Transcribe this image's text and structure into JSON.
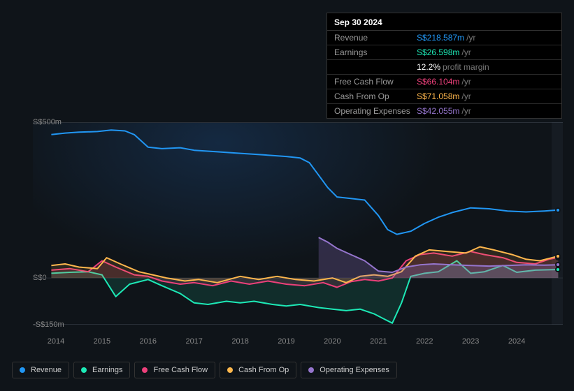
{
  "tooltip": {
    "date": "Sep 30 2024",
    "rows": [
      {
        "label": "Revenue",
        "value": "S$218.587m",
        "unit": "/yr",
        "color": "#2196f3"
      },
      {
        "label": "Earnings",
        "value": "S$26.598m",
        "unit": "/yr",
        "color": "#1de9b6"
      },
      {
        "label": "",
        "value": "12.2%",
        "unit": "profit margin",
        "color": "#ffffff"
      },
      {
        "label": "Free Cash Flow",
        "value": "S$66.104m",
        "unit": "/yr",
        "color": "#ec407a"
      },
      {
        "label": "Cash From Op",
        "value": "S$71.058m",
        "unit": "/yr",
        "color": "#ffb74d"
      },
      {
        "label": "Operating Expenses",
        "value": "S$42.055m",
        "unit": "/yr",
        "color": "#9575cd"
      }
    ]
  },
  "chart": {
    "type": "line",
    "background_color": "#0f1419",
    "grid_color": "#2a3038",
    "text_color": "#888888",
    "label_fontsize": 11,
    "y_axis": {
      "ticks": [
        {
          "label": "S$500m",
          "value": 500
        },
        {
          "label": "S$0",
          "value": 0
        },
        {
          "label": "-S$150m",
          "value": -150
        }
      ],
      "min": -150,
      "max": 500
    },
    "x_axis": {
      "min": 2013.5,
      "max": 2025.0,
      "labels": [
        "2014",
        "2015",
        "2016",
        "2017",
        "2018",
        "2019",
        "2020",
        "2021",
        "2022",
        "2023",
        "2024"
      ]
    },
    "future_start": 2024.75,
    "series": [
      {
        "name": "Revenue",
        "color": "#2196f3",
        "line_width": 2,
        "fill_opacity": 0,
        "data": [
          [
            2013.9,
            460
          ],
          [
            2014.2,
            465
          ],
          [
            2014.5,
            468
          ],
          [
            2014.9,
            470
          ],
          [
            2015.2,
            475
          ],
          [
            2015.5,
            472
          ],
          [
            2015.7,
            460
          ],
          [
            2016.0,
            420
          ],
          [
            2016.3,
            415
          ],
          [
            2016.7,
            418
          ],
          [
            2017.0,
            410
          ],
          [
            2017.5,
            405
          ],
          [
            2018.0,
            400
          ],
          [
            2018.5,
            395
          ],
          [
            2019.0,
            390
          ],
          [
            2019.3,
            385
          ],
          [
            2019.5,
            370
          ],
          [
            2019.7,
            330
          ],
          [
            2019.9,
            290
          ],
          [
            2020.1,
            260
          ],
          [
            2020.4,
            255
          ],
          [
            2020.7,
            250
          ],
          [
            2021.0,
            200
          ],
          [
            2021.2,
            155
          ],
          [
            2021.4,
            140
          ],
          [
            2021.7,
            150
          ],
          [
            2022.0,
            175
          ],
          [
            2022.3,
            195
          ],
          [
            2022.6,
            210
          ],
          [
            2023.0,
            225
          ],
          [
            2023.4,
            222
          ],
          [
            2023.8,
            215
          ],
          [
            2024.2,
            212
          ],
          [
            2024.6,
            215
          ],
          [
            2024.9,
            218
          ]
        ]
      },
      {
        "name": "Earnings",
        "color": "#1de9b6",
        "line_width": 2,
        "fill_opacity": 0.12,
        "data": [
          [
            2013.9,
            15
          ],
          [
            2014.3,
            18
          ],
          [
            2014.7,
            20
          ],
          [
            2015.0,
            10
          ],
          [
            2015.3,
            -60
          ],
          [
            2015.6,
            -20
          ],
          [
            2016.0,
            -5
          ],
          [
            2016.3,
            -25
          ],
          [
            2016.7,
            -50
          ],
          [
            2017.0,
            -80
          ],
          [
            2017.3,
            -85
          ],
          [
            2017.7,
            -75
          ],
          [
            2018.0,
            -80
          ],
          [
            2018.3,
            -75
          ],
          [
            2018.7,
            -85
          ],
          [
            2019.0,
            -90
          ],
          [
            2019.3,
            -85
          ],
          [
            2019.7,
            -95
          ],
          [
            2020.0,
            -100
          ],
          [
            2020.3,
            -105
          ],
          [
            2020.6,
            -100
          ],
          [
            2020.9,
            -115
          ],
          [
            2021.1,
            -130
          ],
          [
            2021.3,
            -145
          ],
          [
            2021.5,
            -80
          ],
          [
            2021.7,
            5
          ],
          [
            2022.0,
            15
          ],
          [
            2022.3,
            20
          ],
          [
            2022.7,
            55
          ],
          [
            2023.0,
            15
          ],
          [
            2023.3,
            20
          ],
          [
            2023.7,
            40
          ],
          [
            2024.0,
            18
          ],
          [
            2024.4,
            25
          ],
          [
            2024.9,
            27
          ]
        ]
      },
      {
        "name": "Free Cash Flow",
        "color": "#ec407a",
        "line_width": 2,
        "fill_opacity": 0.15,
        "data": [
          [
            2013.9,
            25
          ],
          [
            2014.3,
            30
          ],
          [
            2014.7,
            20
          ],
          [
            2015.0,
            55
          ],
          [
            2015.3,
            35
          ],
          [
            2015.7,
            10
          ],
          [
            2016.0,
            5
          ],
          [
            2016.3,
            -10
          ],
          [
            2016.7,
            -20
          ],
          [
            2017.0,
            -15
          ],
          [
            2017.4,
            -25
          ],
          [
            2017.8,
            -10
          ],
          [
            2018.2,
            -20
          ],
          [
            2018.6,
            -10
          ],
          [
            2019.0,
            -20
          ],
          [
            2019.4,
            -25
          ],
          [
            2019.8,
            -15
          ],
          [
            2020.1,
            -30
          ],
          [
            2020.4,
            -12
          ],
          [
            2020.7,
            -5
          ],
          [
            2021.0,
            -10
          ],
          [
            2021.3,
            0
          ],
          [
            2021.6,
            55
          ],
          [
            2021.9,
            75
          ],
          [
            2022.2,
            80
          ],
          [
            2022.6,
            70
          ],
          [
            2023.0,
            85
          ],
          [
            2023.3,
            75
          ],
          [
            2023.7,
            65
          ],
          [
            2024.0,
            50
          ],
          [
            2024.4,
            45
          ],
          [
            2024.7,
            60
          ],
          [
            2024.9,
            66
          ]
        ]
      },
      {
        "name": "Cash From Op",
        "color": "#ffb74d",
        "line_width": 2,
        "fill_opacity": 0.12,
        "data": [
          [
            2013.9,
            40
          ],
          [
            2014.2,
            45
          ],
          [
            2014.5,
            35
          ],
          [
            2014.9,
            30
          ],
          [
            2015.1,
            65
          ],
          [
            2015.4,
            45
          ],
          [
            2015.8,
            20
          ],
          [
            2016.1,
            10
          ],
          [
            2016.4,
            0
          ],
          [
            2016.8,
            -10
          ],
          [
            2017.1,
            -5
          ],
          [
            2017.5,
            -15
          ],
          [
            2018.0,
            5
          ],
          [
            2018.4,
            -5
          ],
          [
            2018.8,
            5
          ],
          [
            2019.2,
            -5
          ],
          [
            2019.6,
            -10
          ],
          [
            2020.0,
            0
          ],
          [
            2020.3,
            -15
          ],
          [
            2020.6,
            5
          ],
          [
            2020.9,
            10
          ],
          [
            2021.2,
            5
          ],
          [
            2021.5,
            20
          ],
          [
            2021.8,
            70
          ],
          [
            2022.1,
            90
          ],
          [
            2022.5,
            85
          ],
          [
            2022.9,
            80
          ],
          [
            2023.2,
            100
          ],
          [
            2023.5,
            90
          ],
          [
            2023.9,
            75
          ],
          [
            2024.2,
            60
          ],
          [
            2024.5,
            55
          ],
          [
            2024.9,
            70
          ]
        ]
      },
      {
        "name": "Operating Expenses",
        "color": "#9575cd",
        "line_width": 2,
        "fill_opacity": 0.25,
        "data": [
          [
            2019.7,
            130
          ],
          [
            2019.9,
            115
          ],
          [
            2020.1,
            95
          ],
          [
            2020.4,
            75
          ],
          [
            2020.7,
            55
          ],
          [
            2021.0,
            22
          ],
          [
            2021.3,
            18
          ],
          [
            2021.6,
            35
          ],
          [
            2021.9,
            42
          ],
          [
            2022.2,
            45
          ],
          [
            2022.6,
            42
          ],
          [
            2023.0,
            40
          ],
          [
            2023.4,
            38
          ],
          [
            2023.8,
            40
          ],
          [
            2024.2,
            42
          ],
          [
            2024.6,
            41
          ],
          [
            2024.9,
            42
          ]
        ]
      }
    ],
    "legend": [
      {
        "label": "Revenue",
        "color": "#2196f3"
      },
      {
        "label": "Earnings",
        "color": "#1de9b6"
      },
      {
        "label": "Free Cash Flow",
        "color": "#ec407a"
      },
      {
        "label": "Cash From Op",
        "color": "#ffb74d"
      },
      {
        "label": "Operating Expenses",
        "color": "#9575cd"
      }
    ]
  }
}
